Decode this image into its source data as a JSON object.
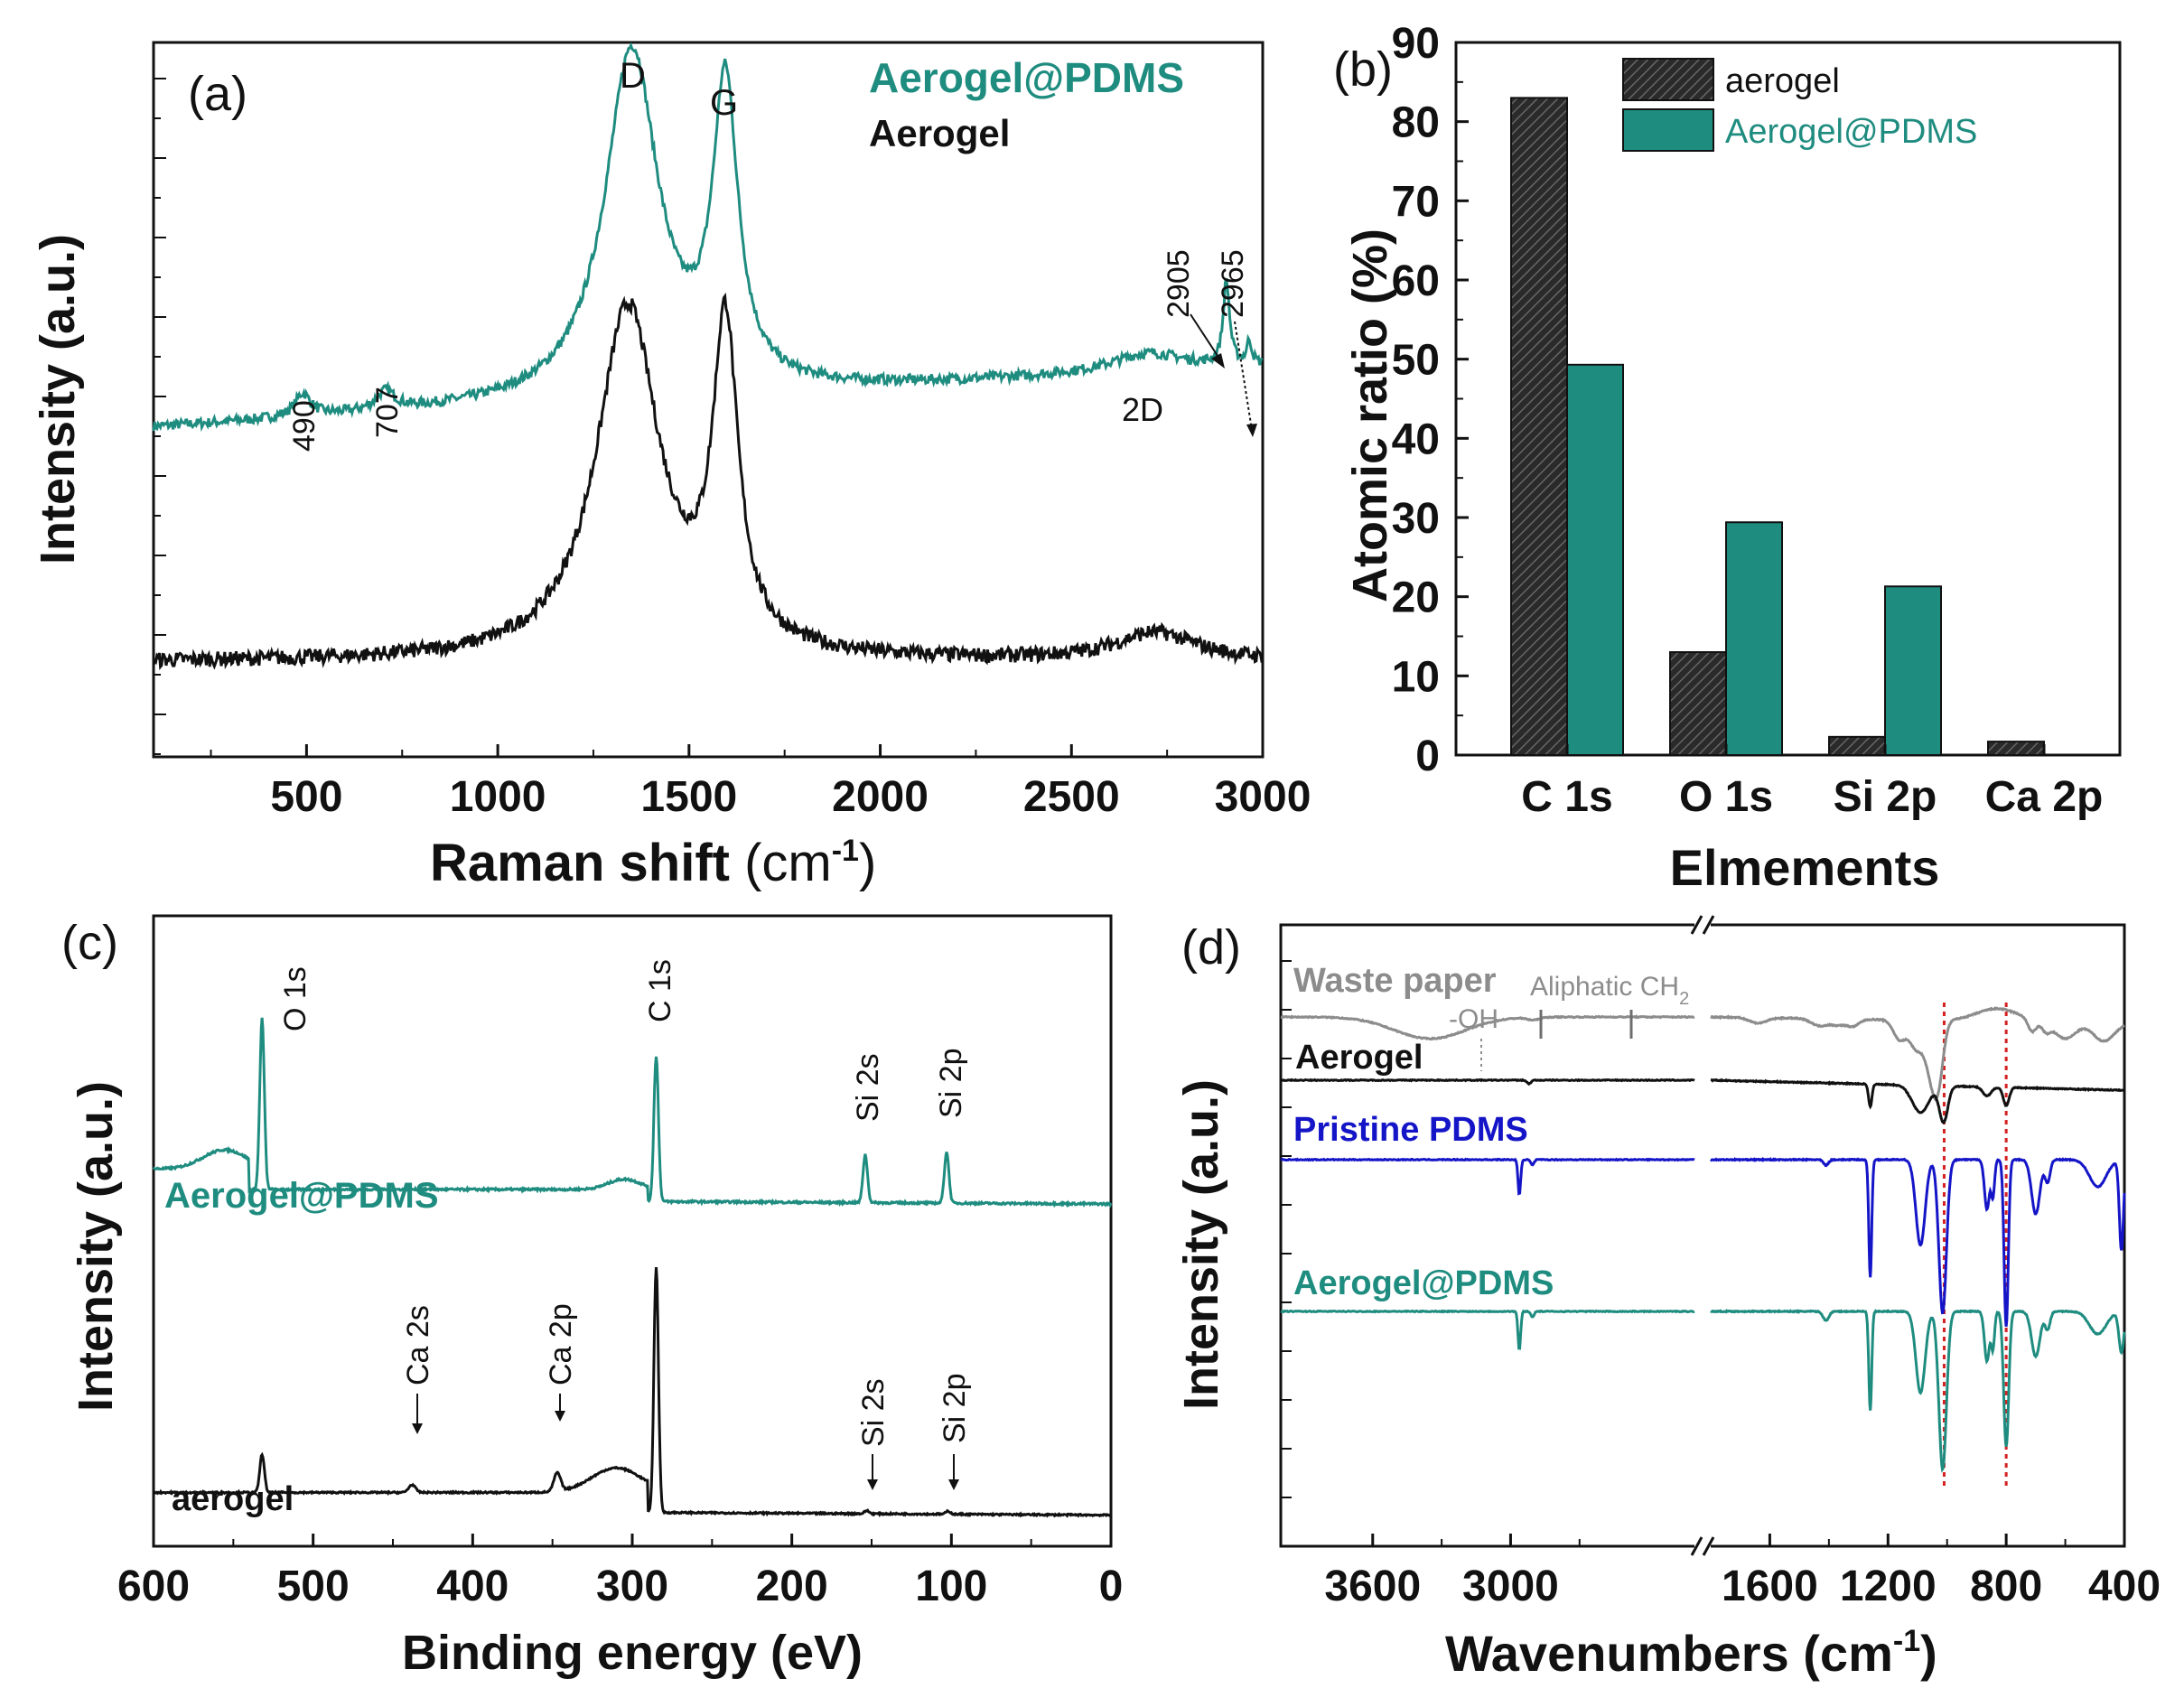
{
  "colors": {
    "teal": "#1f8c80",
    "black": "#111111",
    "blue": "#1515c8",
    "gray": "#8c8c8c",
    "red": "#d42020"
  },
  "chart_data": [
    {
      "panel": "(a)",
      "type": "line",
      "xlabel_main": "Raman shift",
      "xlabel_unit_base": "(cm",
      "xlabel_unit_sup": "-1",
      "xlabel_unit_close": ")",
      "ylabel": "Intensity (a.u.)",
      "xlim": [
        100,
        3000
      ],
      "xticks": [
        "500",
        "1000",
        "1500",
        "2000",
        "2500",
        "3000"
      ],
      "legend": [
        "Aerogel@PDMS",
        "Aerogel"
      ],
      "peak_labels": {
        "d": "D",
        "g": "G",
        "p490": "490",
        "p707": "707",
        "p2d": "2D",
        "p2905": "2905",
        "p2965": "2965"
      },
      "series": [
        {
          "name": "Aerogel@PDMS",
          "baseline": 30,
          "peaks": [
            [
              490,
              6,
              25
            ],
            [
              707,
              5,
              30
            ],
            [
              1350,
              92,
              85
            ],
            [
              1595,
              78,
              40
            ],
            [
              2700,
              5,
              120
            ],
            [
              2905,
              22,
              10
            ],
            [
              2965,
              6,
              8
            ]
          ]
        },
        {
          "name": "Aerogel",
          "baseline": 8,
          "peaks": [
            [
              1340,
              75,
              100
            ],
            [
              1595,
              67,
              40
            ],
            [
              2720,
              6,
              130
            ]
          ]
        }
      ]
    },
    {
      "panel": "(b)",
      "type": "bar",
      "xlabel": "Elmements",
      "ylabel": "Atomic ratio (%)",
      "ylim": [
        0,
        90
      ],
      "yticks": [
        "0",
        "10",
        "20",
        "30",
        "40",
        "50",
        "60",
        "70",
        "80",
        "90"
      ],
      "categories": [
        "C 1s",
        "O 1s",
        "Si 2p",
        "Ca 2p"
      ],
      "series": [
        {
          "name": "aerogel",
          "values": [
            83,
            13,
            2.3,
            1.7
          ]
        },
        {
          "name": "Aerogel@PDMS",
          "values": [
            49.3,
            29.4,
            21.3,
            0
          ]
        }
      ]
    },
    {
      "panel": "(c)",
      "type": "line",
      "xlabel": "Binding energy (eV)",
      "ylabel": "Intensity (a.u.)",
      "xlim": [
        600,
        0
      ],
      "xticks": [
        "600",
        "500",
        "400",
        "300",
        "200",
        "100",
        "0"
      ],
      "peak_labels": {
        "o1s": "O 1s",
        "c1s": "C 1s",
        "si2s_top": "Si 2s",
        "si2p_top": "Si 2p",
        "ca2s": "Ca 2s",
        "ca2p": "Ca 2p",
        "si2s_bot": "Si 2s",
        "si2p_bot": "Si 2p"
      },
      "series": [
        {
          "name": "Aerogel@PDMS",
          "label": "Aerogel@PDMS",
          "peaks": [
            [
              532,
              100,
              2
            ],
            [
              285,
              85,
              2
            ],
            [
              154,
              28,
              2
            ],
            [
              103,
              30,
              2
            ]
          ]
        },
        {
          "name": "aerogel",
          "label": "aerogel",
          "peaks": [
            [
              532,
              25,
              2
            ],
            [
              438,
              5,
              3
            ],
            [
              347,
              12,
              3
            ],
            [
              285,
              160,
              2
            ],
            [
              153,
              2,
              2
            ],
            [
              102,
              2,
              2
            ]
          ]
        }
      ]
    },
    {
      "panel": "(d)",
      "type": "line",
      "xlabel_main": "Wavenumbers",
      "xlabel_unit_base": "(cm",
      "xlabel_unit_sup": "-1",
      "xlabel_unit_close": ")",
      "ylabel": "Intensity (a.u.)",
      "x_segments": [
        [
          4000,
          2200
        ],
        [
          1800,
          400
        ]
      ],
      "xticks": [
        "3600",
        "3000",
        "1600",
        "1200",
        "800",
        "400"
      ],
      "annotation_oh": "-OH",
      "annotation_ch_base": "Aliphatic CH",
      "annotation_ch_sub": "2",
      "reference_lines_cm": [
        1010,
        800
      ],
      "series": [
        {
          "name": "Waste paper",
          "label": "Waste paper"
        },
        {
          "name": "Aerogel",
          "label": "Aerogel"
        },
        {
          "name": "Pristine PDMS",
          "label": "Pristine PDMS"
        },
        {
          "name": "Aerogel@PDMS",
          "label": "Aerogel@PDMS"
        }
      ]
    }
  ]
}
